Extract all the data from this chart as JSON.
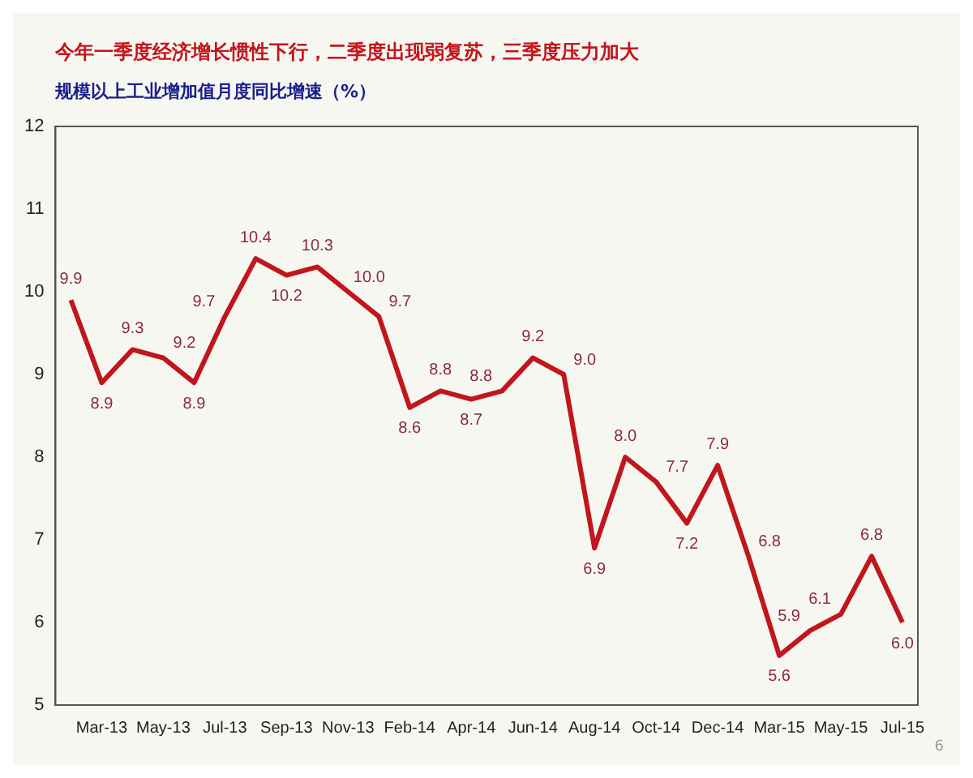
{
  "chart_data": {
    "type": "line",
    "title": "今年一季度经济增长惯性下行，二季度出现弱复苏，三季度压力加大",
    "subtitle": "规模以上工业增加值月度同比增速（%）",
    "categories": [
      null,
      "Mar-13",
      null,
      "May-13",
      null,
      "Jul-13",
      null,
      "Sep-13",
      null,
      "Nov-13",
      null,
      "Feb-14",
      null,
      "Apr-14",
      null,
      "Jun-14",
      null,
      "Aug-14",
      null,
      "Oct-14",
      null,
      "Dec-14",
      null,
      "Mar-15",
      null,
      "May-15",
      null,
      "Jul-15"
    ],
    "series": [
      {
        "color": "#c0161c",
        "values": [
          9.9,
          8.9,
          9.3,
          9.2,
          8.9,
          9.7,
          10.4,
          10.2,
          10.3,
          10.0,
          9.7,
          8.6,
          8.8,
          8.7,
          8.8,
          9.2,
          9.0,
          6.9,
          8.0,
          7.7,
          7.2,
          7.9,
          6.8,
          5.6,
          5.9,
          6.1,
          6.8,
          6.0
        ],
        "value_labels": [
          "9.9",
          "8.9",
          "9.3",
          "9.2",
          "8.9",
          "9.7",
          "10.4",
          "10.2",
          "10.3",
          "10.0",
          "9.7",
          "8.6",
          "8.8",
          "8.7",
          "8.8",
          "9.2",
          "9.0",
          "6.9",
          "8.0",
          "7.7",
          "7.2",
          "7.9",
          "6.8",
          "5.6",
          "5.9",
          "6.1",
          "6.8",
          "6.0"
        ]
      }
    ],
    "ylim": [
      5,
      12
    ],
    "yticks": [
      5,
      6,
      7,
      8,
      9,
      10,
      11,
      12
    ],
    "grid": false,
    "legend": false,
    "marker": "none",
    "line_style": "solid",
    "annotations": [
      "6"
    ]
  }
}
